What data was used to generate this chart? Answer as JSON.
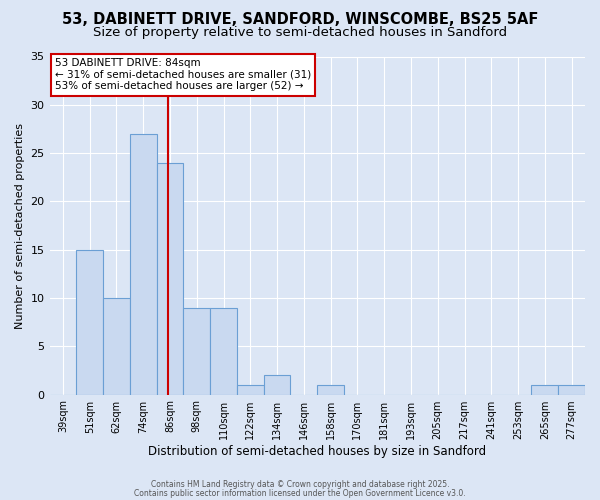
{
  "title_line1": "53, DABINETT DRIVE, SANDFORD, WINSCOMBE, BS25 5AF",
  "title_line2": "Size of property relative to semi-detached houses in Sandford",
  "xlabel": "Distribution of semi-detached houses by size in Sandford",
  "ylabel": "Number of semi-detached properties",
  "categories": [
    "39sqm",
    "51sqm",
    "62sqm",
    "74sqm",
    "86sqm",
    "98sqm",
    "110sqm",
    "122sqm",
    "134sqm",
    "146sqm",
    "158sqm",
    "170sqm",
    "181sqm",
    "193sqm",
    "205sqm",
    "217sqm",
    "241sqm",
    "253sqm",
    "265sqm",
    "277sqm"
  ],
  "values": [
    0,
    15,
    10,
    27,
    24,
    9,
    9,
    1,
    2,
    0,
    1,
    0,
    0,
    0,
    0,
    0,
    0,
    0,
    1,
    1
  ],
  "bar_color": "#c9d9f0",
  "bar_edge_color": "#6b9fd4",
  "ylim": [
    0,
    35
  ],
  "yticks": [
    0,
    5,
    10,
    15,
    20,
    25,
    30,
    35
  ],
  "red_line_x": 3.92,
  "annotation_title": "53 DABINETT DRIVE: 84sqm",
  "annotation_line2": "← 31% of semi-detached houses are smaller (31)",
  "annotation_line3": "53% of semi-detached houses are larger (52) →",
  "annotation_box_color": "#ffffff",
  "annotation_box_edgecolor": "#cc0000",
  "red_line_color": "#cc0000",
  "background_color": "#dce6f5",
  "footer_line1": "Contains HM Land Registry data © Crown copyright and database right 2025.",
  "footer_line2": "Contains public sector information licensed under the Open Government Licence v3.0.",
  "title_fontsize": 10.5,
  "subtitle_fontsize": 9.5
}
